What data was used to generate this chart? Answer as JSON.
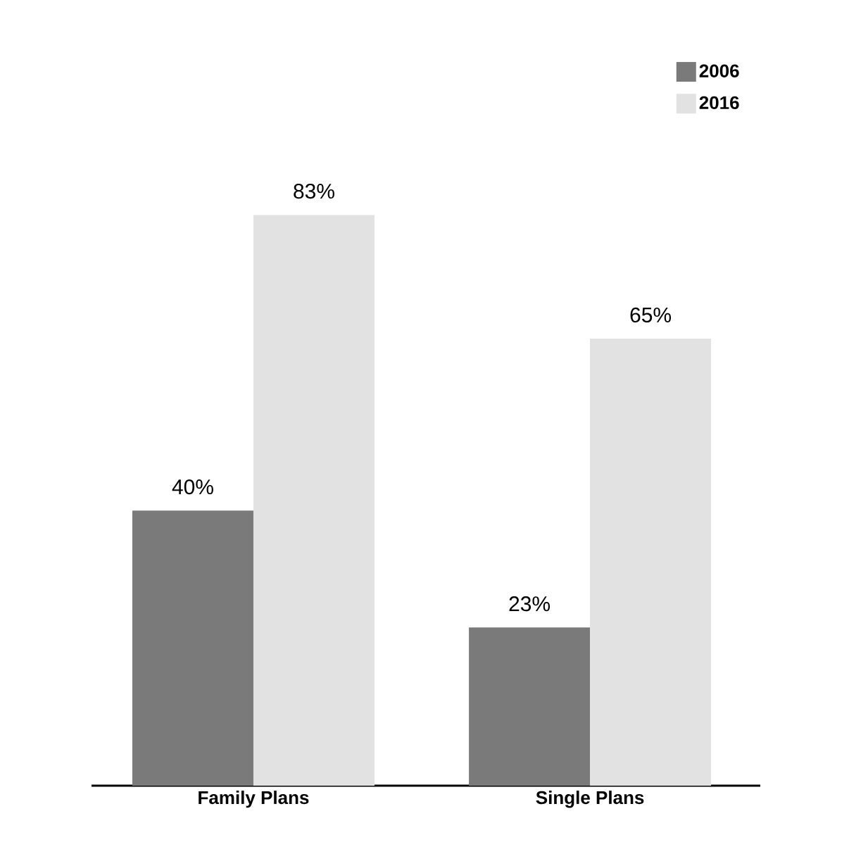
{
  "chart_data": {
    "type": "bar",
    "categories": [
      "Family Plans",
      "Single Plans"
    ],
    "series": [
      {
        "name": "2006",
        "color": "#7a7a7a",
        "values": [
          40,
          23
        ],
        "value_labels": [
          "40%",
          "23%"
        ]
      },
      {
        "name": "2016",
        "color": "#e2e2e2",
        "values": [
          83,
          65
        ],
        "value_labels": [
          "83%",
          "65%"
        ]
      }
    ],
    "legend": "top right"
  }
}
